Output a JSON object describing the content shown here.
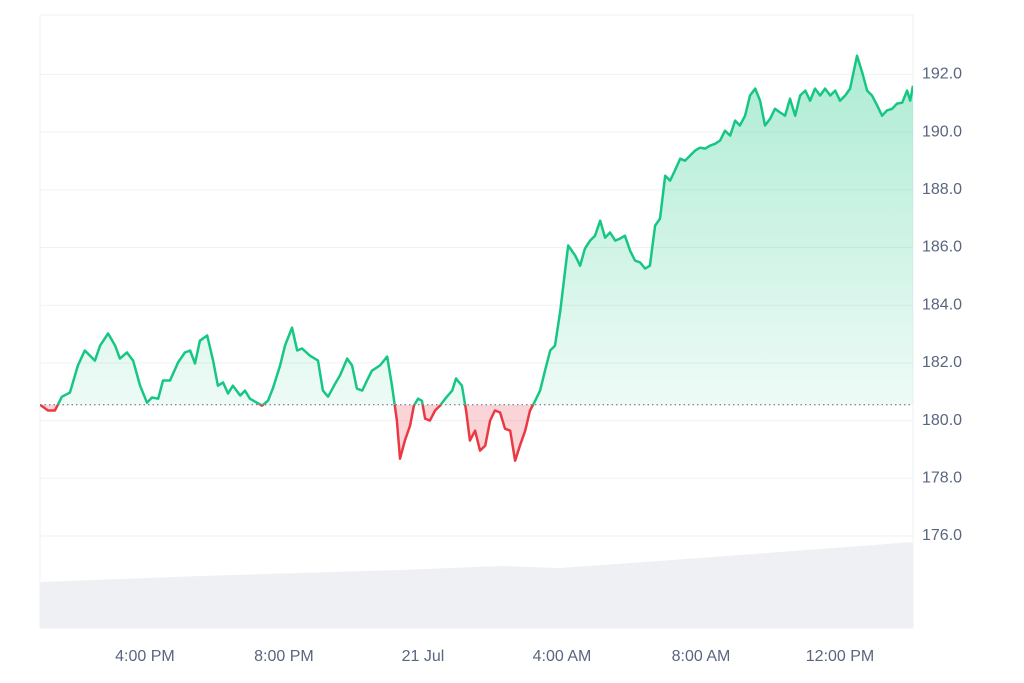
{
  "chart_data": {
    "type": "line",
    "x": [
      -11.02,
      -10.79,
      -10.59,
      -10.39,
      -10.16,
      -9.93,
      -9.73,
      -9.44,
      -9.29,
      -9.06,
      -8.86,
      -8.72,
      -8.52,
      -8.34,
      -8.14,
      -7.94,
      -7.8,
      -7.62,
      -7.48,
      -7.28,
      -7.05,
      -6.85,
      -6.7,
      -6.56,
      -6.42,
      -6.21,
      -6.04,
      -5.9,
      -5.75,
      -5.61,
      -5.47,
      -5.26,
      -5.12,
      -4.98,
      -4.78,
      -4.63,
      -4.46,
      -4.32,
      -4.11,
      -3.97,
      -3.77,
      -3.62,
      -3.48,
      -3.25,
      -3.02,
      -2.88,
      -2.73,
      -2.53,
      -2.39,
      -2.18,
      -2.04,
      -1.9,
      -1.75,
      -1.61,
      -1.47,
      -1.24,
      -1.03,
      -0.89,
      -0.75,
      -0.66,
      -0.52,
      -0.37,
      -0.26,
      -0.14,
      -0.03,
      0.06,
      0.2,
      0.35,
      0.49,
      0.64,
      0.84,
      0.95,
      1.12,
      1.24,
      1.35,
      1.5,
      1.64,
      1.79,
      1.93,
      2.07,
      2.22,
      2.36,
      2.51,
      2.65,
      2.79,
      2.94,
      3.08,
      3.23,
      3.37,
      3.51,
      3.66,
      3.8,
      3.95,
      4.09,
      4.18,
      4.38,
      4.52,
      4.66,
      4.81,
      4.95,
      5.1,
      5.24,
      5.38,
      5.53,
      5.67,
      5.81,
      5.96,
      6.1,
      6.25,
      6.39,
      6.53,
      6.68,
      6.82,
      6.97,
      7.11,
      7.25,
      7.4,
      7.54,
      7.69,
      7.83,
      7.97,
      8.12,
      8.26,
      8.41,
      8.55,
      8.69,
      8.84,
      8.98,
      9.12,
      9.27,
      9.41,
      9.56,
      9.7,
      9.84,
      9.99,
      10.13,
      10.28,
      10.42,
      10.56,
      10.71,
      10.85,
      11.0,
      11.14,
      11.28,
      11.43,
      11.57,
      11.72,
      11.86,
      12.0,
      12.15,
      12.29,
      12.49,
      12.64,
      12.78,
      12.92,
      13.07,
      13.21,
      13.35,
      13.5,
      13.64,
      13.79,
      13.93,
      14.02,
      14.1
    ],
    "values": [
      180.55,
      180.35,
      180.35,
      180.83,
      180.97,
      181.91,
      182.43,
      182.08,
      182.6,
      183.02,
      182.6,
      182.15,
      182.36,
      182.08,
      181.21,
      180.62,
      180.8,
      180.76,
      181.39,
      181.39,
      182.01,
      182.36,
      182.43,
      181.98,
      182.77,
      182.95,
      182.08,
      181.21,
      181.32,
      180.94,
      181.21,
      180.87,
      181.04,
      180.76,
      180.62,
      180.52,
      180.69,
      181.11,
      181.91,
      182.6,
      183.22,
      182.43,
      182.5,
      182.25,
      182.08,
      181.04,
      180.83,
      181.28,
      181.56,
      182.15,
      181.91,
      181.11,
      181.04,
      181.39,
      181.73,
      181.91,
      182.22,
      181.21,
      180.0,
      178.68,
      179.31,
      179.83,
      180.52,
      180.76,
      180.69,
      180.07,
      180.0,
      180.35,
      180.52,
      180.76,
      181.04,
      181.46,
      181.21,
      180.35,
      179.31,
      179.65,
      178.96,
      179.13,
      180.0,
      180.35,
      180.28,
      179.72,
      179.65,
      178.61,
      179.13,
      179.65,
      180.35,
      180.69,
      181.04,
      181.73,
      182.43,
      182.6,
      183.81,
      185.2,
      186.07,
      185.72,
      185.37,
      185.96,
      186.24,
      186.41,
      186.93,
      186.34,
      186.52,
      186.24,
      186.31,
      186.41,
      185.89,
      185.55,
      185.48,
      185.27,
      185.37,
      186.76,
      187.0,
      188.49,
      188.32,
      188.67,
      189.08,
      189.01,
      189.19,
      189.36,
      189.46,
      189.43,
      189.53,
      189.6,
      189.71,
      190.05,
      189.88,
      190.4,
      190.23,
      190.57,
      191.27,
      191.51,
      191.09,
      190.23,
      190.47,
      190.81,
      190.68,
      190.57,
      191.16,
      190.57,
      191.27,
      191.44,
      191.09,
      191.51,
      191.27,
      191.51,
      191.27,
      191.44,
      191.09,
      191.27,
      191.51,
      192.65,
      192.06,
      191.44,
      191.27,
      190.92,
      190.57,
      190.75,
      190.81,
      190.99,
      191.02,
      191.44,
      191.09,
      191.61
    ],
    "baseline": 180.55,
    "color_up": "#16c784",
    "color_down": "#ea3943",
    "xlim": [
      -11.02,
      14.1
    ],
    "xticks": [
      {
        "value": -8,
        "label": "4:00 PM"
      },
      {
        "value": -4,
        "label": "8:00 PM"
      },
      {
        "value": 0,
        "label": "21 Jul"
      },
      {
        "value": 4,
        "label": "4:00 AM"
      },
      {
        "value": 8,
        "label": "8:00 AM"
      },
      {
        "value": 12,
        "label": "12:00 PM"
      }
    ],
    "ylim": [
      176,
      194.06
    ],
    "yticks": [
      {
        "value": 176,
        "label": "176.0"
      },
      {
        "value": 178,
        "label": "178.0"
      },
      {
        "value": 180,
        "label": "180.0"
      },
      {
        "value": 182,
        "label": "182.0"
      },
      {
        "value": 184,
        "label": "184.0"
      },
      {
        "value": 186,
        "label": "186.0"
      },
      {
        "value": 188,
        "label": "188.0"
      },
      {
        "value": 190,
        "label": "190.0"
      },
      {
        "value": 192,
        "label": "192.0"
      }
    ],
    "grid": true
  }
}
